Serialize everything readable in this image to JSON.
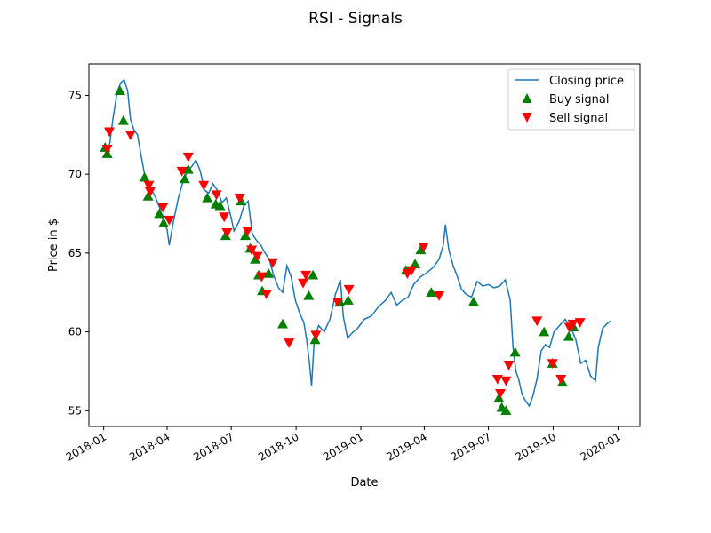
{
  "chart_data": {
    "type": "line",
    "title": "RSI - Signals",
    "xlabel": "Date",
    "ylabel": "Price in $",
    "xlim": [
      "2017-12-11",
      "2020-02-01"
    ],
    "ylim": [
      54,
      77
    ],
    "x_ticks": [
      "2018-01-01",
      "2018-04-01",
      "2018-07-01",
      "2018-10-01",
      "2019-01-01",
      "2019-04-01",
      "2019-07-01",
      "2019-10-01",
      "2020-01-01"
    ],
    "x_tick_labels": [
      "2018-01",
      "2018-04",
      "2018-07",
      "2018-10",
      "2019-01",
      "2019-04",
      "2019-07",
      "2019-10",
      "2020-01"
    ],
    "y_ticks": [
      55,
      60,
      65,
      70,
      75
    ],
    "grid": false,
    "legend_position": "top-right",
    "colors": {
      "closing": "#1f77b4",
      "buy": "#008000",
      "sell": "#ff0000"
    },
    "series": [
      {
        "name": "Closing price",
        "kind": "line",
        "points": [
          [
            "2018-01-02",
            71.7
          ],
          [
            "2018-01-08",
            71.4
          ],
          [
            "2018-01-14",
            73.5
          ],
          [
            "2018-01-20",
            75.2
          ],
          [
            "2018-01-25",
            75.8
          ],
          [
            "2018-01-30",
            76.0
          ],
          [
            "2018-02-04",
            75.3
          ],
          [
            "2018-02-08",
            73.5
          ],
          [
            "2018-02-13",
            72.8
          ],
          [
            "2018-02-18",
            72.5
          ],
          [
            "2018-02-23",
            71.2
          ],
          [
            "2018-02-28",
            70.0
          ],
          [
            "2018-03-05",
            69.5
          ],
          [
            "2018-03-10",
            69.0
          ],
          [
            "2018-03-16",
            68.5
          ],
          [
            "2018-03-22",
            67.8
          ],
          [
            "2018-03-27",
            67.0
          ],
          [
            "2018-04-01",
            66.5
          ],
          [
            "2018-04-04",
            65.5
          ],
          [
            "2018-04-10",
            67.0
          ],
          [
            "2018-04-17",
            68.5
          ],
          [
            "2018-04-24",
            69.6
          ],
          [
            "2018-04-30",
            70.2
          ],
          [
            "2018-05-06",
            70.5
          ],
          [
            "2018-05-12",
            70.9
          ],
          [
            "2018-05-18",
            70.2
          ],
          [
            "2018-05-24",
            69.0
          ],
          [
            "2018-05-30",
            68.8
          ],
          [
            "2018-06-05",
            69.4
          ],
          [
            "2018-06-11",
            69.0
          ],
          [
            "2018-06-18",
            68.2
          ],
          [
            "2018-06-24",
            68.5
          ],
          [
            "2018-07-01",
            67.2
          ],
          [
            "2018-07-05",
            66.4
          ],
          [
            "2018-07-12",
            67.0
          ],
          [
            "2018-07-19",
            68.0
          ],
          [
            "2018-07-25",
            68.3
          ],
          [
            "2018-07-31",
            66.2
          ],
          [
            "2018-08-06",
            65.8
          ],
          [
            "2018-08-12",
            65.5
          ],
          [
            "2018-08-18",
            65.0
          ],
          [
            "2018-08-24",
            64.6
          ],
          [
            "2018-08-30",
            63.6
          ],
          [
            "2018-09-06",
            62.8
          ],
          [
            "2018-09-12",
            62.5
          ],
          [
            "2018-09-18",
            64.2
          ],
          [
            "2018-09-24",
            63.5
          ],
          [
            "2018-09-30",
            62.0
          ],
          [
            "2018-10-06",
            61.2
          ],
          [
            "2018-10-12",
            60.6
          ],
          [
            "2018-10-16",
            59.5
          ],
          [
            "2018-10-20",
            58.0
          ],
          [
            "2018-10-23",
            56.6
          ],
          [
            "2018-10-27",
            59.6
          ],
          [
            "2018-11-02",
            60.4
          ],
          [
            "2018-11-10",
            60.0
          ],
          [
            "2018-11-18",
            60.8
          ],
          [
            "2018-11-26",
            62.4
          ],
          [
            "2018-12-03",
            63.3
          ],
          [
            "2018-12-07",
            61.0
          ],
          [
            "2018-12-13",
            59.6
          ],
          [
            "2018-12-19",
            59.9
          ],
          [
            "2018-12-27",
            60.2
          ],
          [
            "2019-01-06",
            60.8
          ],
          [
            "2019-01-16",
            61.0
          ],
          [
            "2019-01-26",
            61.6
          ],
          [
            "2019-02-05",
            62.0
          ],
          [
            "2019-02-13",
            62.5
          ],
          [
            "2019-02-21",
            61.7
          ],
          [
            "2019-03-01",
            62.0
          ],
          [
            "2019-03-09",
            62.2
          ],
          [
            "2019-03-17",
            63.0
          ],
          [
            "2019-03-27",
            63.5
          ],
          [
            "2019-04-06",
            63.8
          ],
          [
            "2019-04-14",
            64.1
          ],
          [
            "2019-04-22",
            64.6
          ],
          [
            "2019-04-28",
            65.5
          ],
          [
            "2019-05-01",
            66.8
          ],
          [
            "2019-05-06",
            65.2
          ],
          [
            "2019-05-12",
            64.2
          ],
          [
            "2019-05-18",
            63.5
          ],
          [
            "2019-05-24",
            62.7
          ],
          [
            "2019-05-30",
            62.4
          ],
          [
            "2019-06-07",
            62.2
          ],
          [
            "2019-06-15",
            63.2
          ],
          [
            "2019-06-23",
            62.9
          ],
          [
            "2019-07-01",
            63.0
          ],
          [
            "2019-07-09",
            62.8
          ],
          [
            "2019-07-17",
            62.9
          ],
          [
            "2019-07-25",
            63.3
          ],
          [
            "2019-08-01",
            62.0
          ],
          [
            "2019-08-05",
            59.0
          ],
          [
            "2019-08-09",
            57.5
          ],
          [
            "2019-08-13",
            57.0
          ],
          [
            "2019-08-18",
            56.0
          ],
          [
            "2019-08-23",
            55.6
          ],
          [
            "2019-08-28",
            55.3
          ],
          [
            "2019-09-02",
            55.9
          ],
          [
            "2019-09-08",
            57.0
          ],
          [
            "2019-09-14",
            58.8
          ],
          [
            "2019-09-20",
            59.2
          ],
          [
            "2019-09-26",
            59.0
          ],
          [
            "2019-10-02",
            60.0
          ],
          [
            "2019-10-10",
            60.4
          ],
          [
            "2019-10-18",
            60.8
          ],
          [
            "2019-10-26",
            60.3
          ],
          [
            "2019-11-02",
            59.5
          ],
          [
            "2019-11-09",
            58.0
          ],
          [
            "2019-11-16",
            58.2
          ],
          [
            "2019-11-23",
            57.2
          ],
          [
            "2019-11-30",
            56.9
          ],
          [
            "2019-12-04",
            59.0
          ],
          [
            "2019-12-10",
            60.2
          ],
          [
            "2019-12-16",
            60.5
          ],
          [
            "2019-12-22",
            60.7
          ]
        ]
      },
      {
        "name": "Buy signal",
        "kind": "scatter",
        "marker": "triangle-up",
        "points": [
          [
            "2018-01-03",
            71.7
          ],
          [
            "2018-01-06",
            71.3
          ],
          [
            "2018-01-24",
            75.3
          ],
          [
            "2018-01-29",
            73.4
          ],
          [
            "2018-02-28",
            69.8
          ],
          [
            "2018-03-05",
            68.6
          ],
          [
            "2018-03-21",
            67.5
          ],
          [
            "2018-03-27",
            66.9
          ],
          [
            "2018-04-26",
            69.7
          ],
          [
            "2018-05-01",
            70.3
          ],
          [
            "2018-05-28",
            68.5
          ],
          [
            "2018-06-09",
            68.1
          ],
          [
            "2018-06-15",
            68.0
          ],
          [
            "2018-06-23",
            66.1
          ],
          [
            "2018-07-15",
            68.3
          ],
          [
            "2018-07-21",
            66.1
          ],
          [
            "2018-07-28",
            65.3
          ],
          [
            "2018-08-04",
            64.6
          ],
          [
            "2018-08-09",
            63.6
          ],
          [
            "2018-08-14",
            62.6
          ],
          [
            "2018-08-23",
            63.7
          ],
          [
            "2018-09-12",
            60.5
          ],
          [
            "2018-10-19",
            62.3
          ],
          [
            "2018-10-25",
            63.6
          ],
          [
            "2018-10-28",
            59.5
          ],
          [
            "2018-12-02",
            61.9
          ],
          [
            "2018-12-14",
            62.0
          ],
          [
            "2019-03-06",
            63.9
          ],
          [
            "2019-03-19",
            64.3
          ],
          [
            "2019-03-27",
            65.2
          ],
          [
            "2019-04-11",
            62.5
          ],
          [
            "2019-06-10",
            61.9
          ],
          [
            "2019-07-16",
            55.8
          ],
          [
            "2019-07-20",
            55.2
          ],
          [
            "2019-07-26",
            55.0
          ],
          [
            "2019-08-08",
            58.7
          ],
          [
            "2019-09-18",
            60.0
          ],
          [
            "2019-09-30",
            58.0
          ],
          [
            "2019-10-14",
            56.8
          ],
          [
            "2019-10-23",
            59.7
          ],
          [
            "2019-10-30",
            60.3
          ]
        ]
      },
      {
        "name": "Sell signal",
        "kind": "scatter",
        "marker": "triangle-down",
        "points": [
          [
            "2018-01-06",
            71.6
          ],
          [
            "2018-01-09",
            72.7
          ],
          [
            "2018-02-08",
            72.5
          ],
          [
            "2018-03-06",
            69.3
          ],
          [
            "2018-03-08",
            68.9
          ],
          [
            "2018-03-26",
            67.9
          ],
          [
            "2018-04-04",
            67.1
          ],
          [
            "2018-04-22",
            70.2
          ],
          [
            "2018-05-01",
            71.1
          ],
          [
            "2018-05-23",
            69.3
          ],
          [
            "2018-06-10",
            68.7
          ],
          [
            "2018-06-21",
            67.3
          ],
          [
            "2018-06-25",
            66.3
          ],
          [
            "2018-07-13",
            68.5
          ],
          [
            "2018-07-24",
            66.4
          ],
          [
            "2018-07-30",
            65.2
          ],
          [
            "2018-08-07",
            64.8
          ],
          [
            "2018-08-13",
            63.5
          ],
          [
            "2018-08-20",
            62.4
          ],
          [
            "2018-08-29",
            64.4
          ],
          [
            "2018-09-21",
            59.3
          ],
          [
            "2018-10-11",
            63.1
          ],
          [
            "2018-10-15",
            63.6
          ],
          [
            "2018-10-29",
            59.8
          ],
          [
            "2018-11-29",
            61.9
          ],
          [
            "2018-12-15",
            62.7
          ],
          [
            "2019-03-08",
            63.7
          ],
          [
            "2019-03-14",
            63.9
          ],
          [
            "2019-03-31",
            65.4
          ],
          [
            "2019-04-22",
            62.3
          ],
          [
            "2019-07-14",
            57.0
          ],
          [
            "2019-07-18",
            56.1
          ],
          [
            "2019-07-26",
            56.9
          ],
          [
            "2019-07-30",
            57.9
          ],
          [
            "2019-09-08",
            60.7
          ],
          [
            "2019-09-30",
            58.0
          ],
          [
            "2019-10-12",
            57.0
          ],
          [
            "2019-10-24",
            60.3
          ],
          [
            "2019-10-29",
            60.5
          ],
          [
            "2019-11-08",
            60.6
          ]
        ]
      }
    ]
  }
}
